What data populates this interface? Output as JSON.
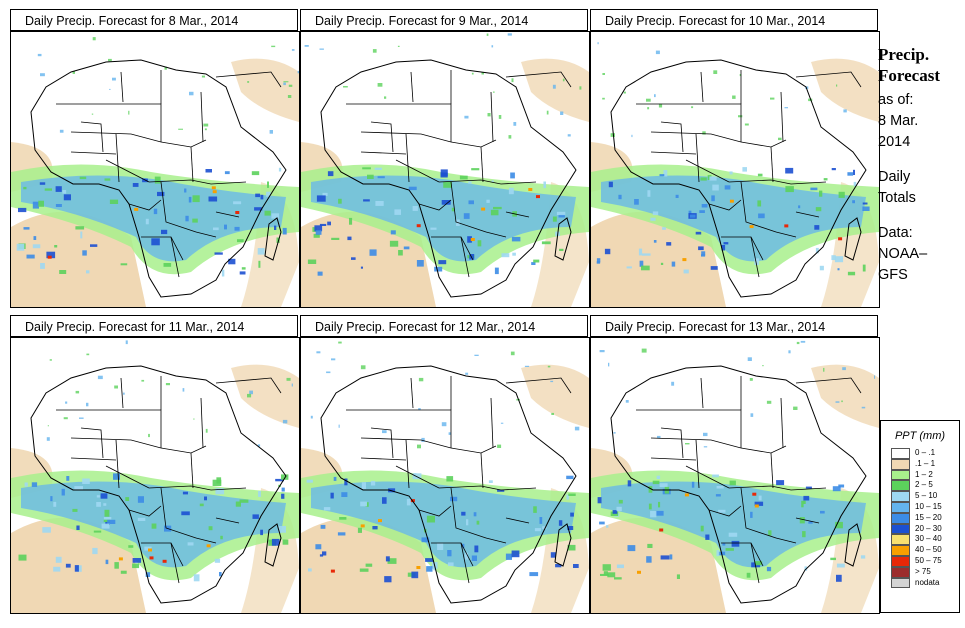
{
  "panels": [
    {
      "title": "Daily Precip. Forecast for  8 Mar., 2014"
    },
    {
      "title": "Daily Precip. Forecast for  9 Mar., 2014"
    },
    {
      "title": "Daily Precip. Forecast for  10 Mar., 2014"
    },
    {
      "title": "Daily Precip. Forecast for  11 Mar., 2014"
    },
    {
      "title": "Daily Precip. Forecast for  12 Mar., 2014"
    },
    {
      "title": "Daily Precip. Forecast for  13 Mar., 2014"
    }
  ],
  "sidebar": {
    "title_line1": "Precip.",
    "title_line2": "Forecast",
    "asof_label": "as of:",
    "date_line1": "8 Mar.",
    "date_line2": "2014",
    "totals_line1": "Daily",
    "totals_line2": "Totals",
    "data_line1": "Data:",
    "data_line2": "NOAA–",
    "data_line3": "GFS"
  },
  "legend": {
    "title": "PPT (mm)",
    "items": [
      {
        "label": "0 – .1",
        "color": "#ffffff"
      },
      {
        "label": ".1 – 1",
        "color": "#f0d8b4"
      },
      {
        "label": "1 – 2",
        "color": "#a8f08c"
      },
      {
        "label": "2 – 5",
        "color": "#5cd25c"
      },
      {
        "label": "5 – 10",
        "color": "#9ed8f2"
      },
      {
        "label": "10 – 15",
        "color": "#64b4ee"
      },
      {
        "label": "15 – 20",
        "color": "#3c8ce6"
      },
      {
        "label": "20 – 30",
        "color": "#1c50d2"
      },
      {
        "label": "30 – 40",
        "color": "#f8e070"
      },
      {
        "label": "40 – 50",
        "color": "#f8a000"
      },
      {
        "label": "50 – 75",
        "color": "#e82808"
      },
      {
        "label": "> 75",
        "color": "#9c2c2c"
      },
      {
        "label": "nodata",
        "color": "#d4d4d4"
      }
    ]
  }
}
